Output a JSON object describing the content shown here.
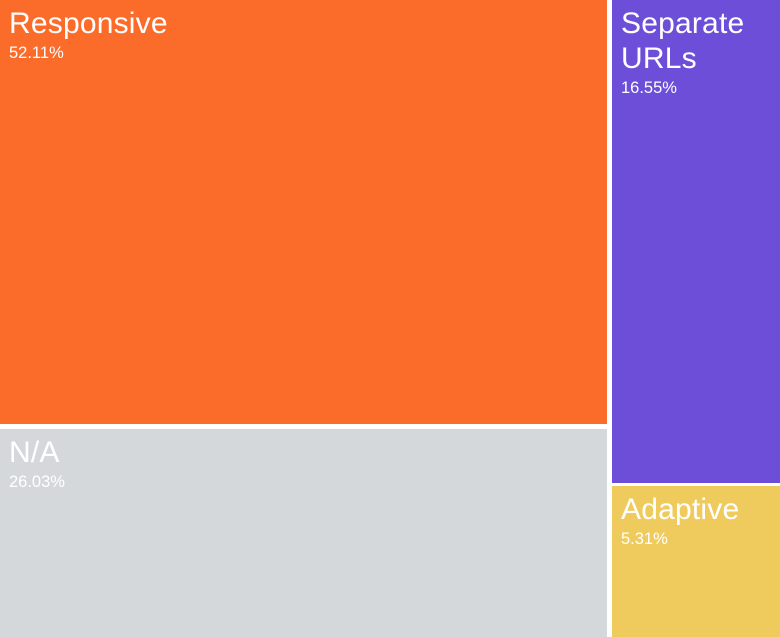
{
  "chart_data": {
    "type": "treemap",
    "title": "",
    "categories": [
      "Responsive",
      "N/A",
      "Separate URLs",
      "Adaptive"
    ],
    "values": [
      52.11,
      26.03,
      16.55,
      5.31
    ],
    "unit": "%",
    "legend_position": "none",
    "gap_color": "#FFFFFF",
    "label_text_color": "#FFFFFF",
    "cells": [
      {
        "label": "Responsive",
        "percent_label": "52.11%",
        "value": 52.11,
        "color": "#FB6C2B"
      },
      {
        "label": "N/A",
        "percent_label": "26.03%",
        "value": 26.03,
        "color": "#D5D8DA"
      },
      {
        "label": "Separate URLs",
        "percent_label": "16.55%",
        "value": 16.55,
        "color": "#6C4ED8"
      },
      {
        "label": "Adaptive",
        "percent_label": "5.31%",
        "value": 5.31,
        "color": "#EFCB5D"
      }
    ]
  }
}
